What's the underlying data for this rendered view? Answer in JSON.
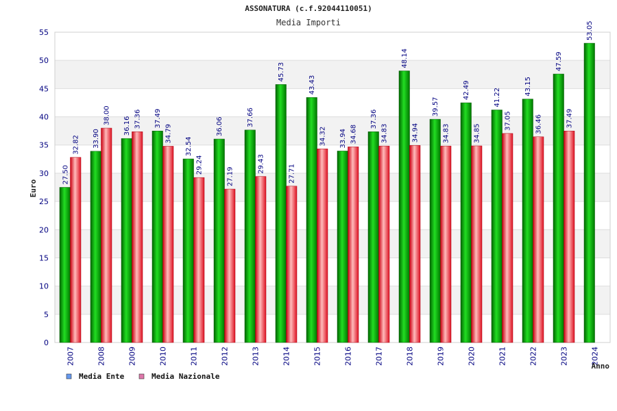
{
  "chart_data": {
    "type": "bar",
    "title": "ASSONATURA (c.f.92044110051)",
    "subtitle": "Media Importi",
    "xlabel": "Anno",
    "ylabel": "Euro",
    "ylim": [
      0,
      55
    ],
    "yticks": [
      0,
      5,
      10,
      15,
      20,
      25,
      30,
      35,
      40,
      45,
      50,
      55
    ],
    "grid": true,
    "legend_position": "bottom-left",
    "categories": [
      "2007",
      "2008",
      "2009",
      "2010",
      "2011",
      "2012",
      "2013",
      "2014",
      "2015",
      "2016",
      "2017",
      "2018",
      "2019",
      "2020",
      "2021",
      "2022",
      "2023",
      "2024"
    ],
    "series": [
      {
        "name": "Media Ente",
        "color": "#00aa00",
        "legend_color": "#6699ee",
        "values": [
          27.5,
          33.9,
          36.16,
          37.49,
          32.54,
          36.06,
          37.66,
          45.73,
          43.43,
          33.94,
          37.36,
          48.14,
          39.57,
          42.49,
          41.22,
          43.15,
          47.59,
          53.05
        ],
        "labels": [
          "27.50",
          "33.90",
          "36.16",
          "37.49",
          "32.54",
          "36.06",
          "37.66",
          "45.73",
          "43.43",
          "33.94",
          "37.36",
          "48.14",
          "39.57",
          "42.49",
          "41.22",
          "43.15",
          "47.59",
          "53.05"
        ]
      },
      {
        "name": "Media Nazionale",
        "color": "#ee2233",
        "legend_color": "#dd77aa",
        "values": [
          32.82,
          38.0,
          37.36,
          34.79,
          29.24,
          27.19,
          29.43,
          27.71,
          34.32,
          34.68,
          34.83,
          34.94,
          34.83,
          34.85,
          37.05,
          36.46,
          37.49,
          null
        ],
        "labels": [
          "32.82",
          "38.00",
          "37.36",
          "34.79",
          "29.24",
          "27.19",
          "29.43",
          "27.71",
          "34.32",
          "34.68",
          "34.83",
          "34.94",
          "34.83",
          "34.85",
          "37.05",
          "36.46",
          "37.49",
          ""
        ]
      }
    ]
  }
}
